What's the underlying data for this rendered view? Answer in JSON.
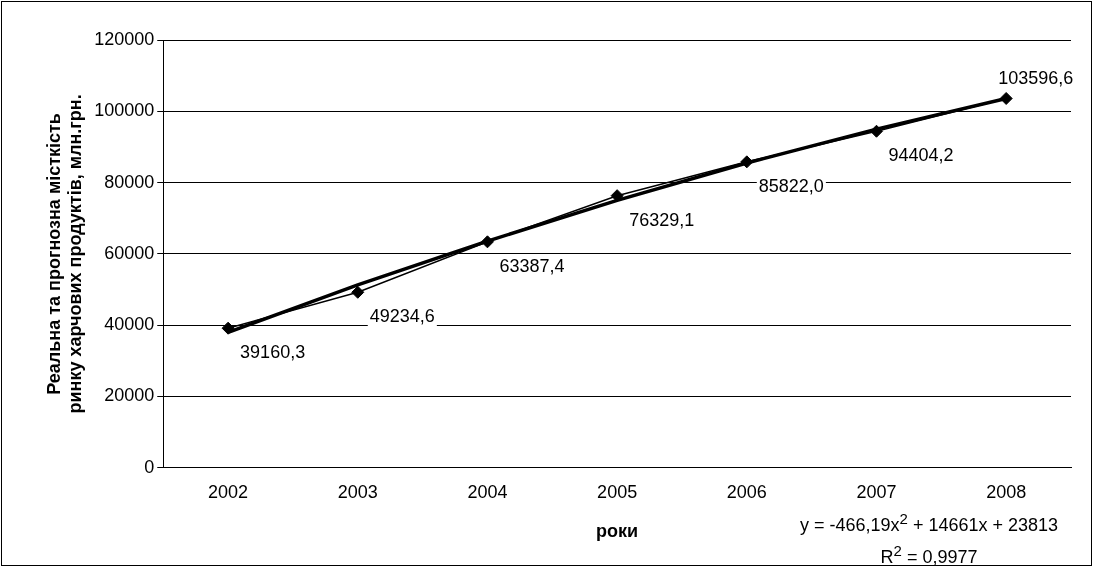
{
  "chart_data": {
    "type": "line",
    "xlabel": "роки",
    "ylabel": "Реальна та прогнозна місткість ринку харчових продуктів, млн.грн.",
    "categories": [
      "2002",
      "2003",
      "2004",
      "2005",
      "2006",
      "2007",
      "2008"
    ],
    "series": [
      {
        "color": "#000000",
        "values": [
          39160.3,
          49234.6,
          63387.4,
          76329.1,
          85822.0,
          94404.2,
          103596.6
        ],
        "value_labels": [
          "39160,3",
          "49234,6",
          "63387,4",
          "76329,1",
          "85822,0",
          "94404,2",
          "103596,6"
        ]
      },
      {
        "type": "line",
        "marker": "none",
        "color": "#000000",
        "values": [
          38000,
          51300,
          63600,
          75000,
          85500,
          95000,
          103600
        ]
      }
    ],
    "ylim": [
      0,
      120000
    ],
    "yticks": [
      0,
      20000,
      40000,
      60000,
      80000,
      100000,
      120000
    ],
    "grid": "y",
    "legend": false,
    "marker": "diamond",
    "line_style": "solid",
    "annotations": [
      "y = -466,19x$^{2}$ + 14661x + 23813",
      "R$^{2}$ = 0,9977"
    ]
  }
}
